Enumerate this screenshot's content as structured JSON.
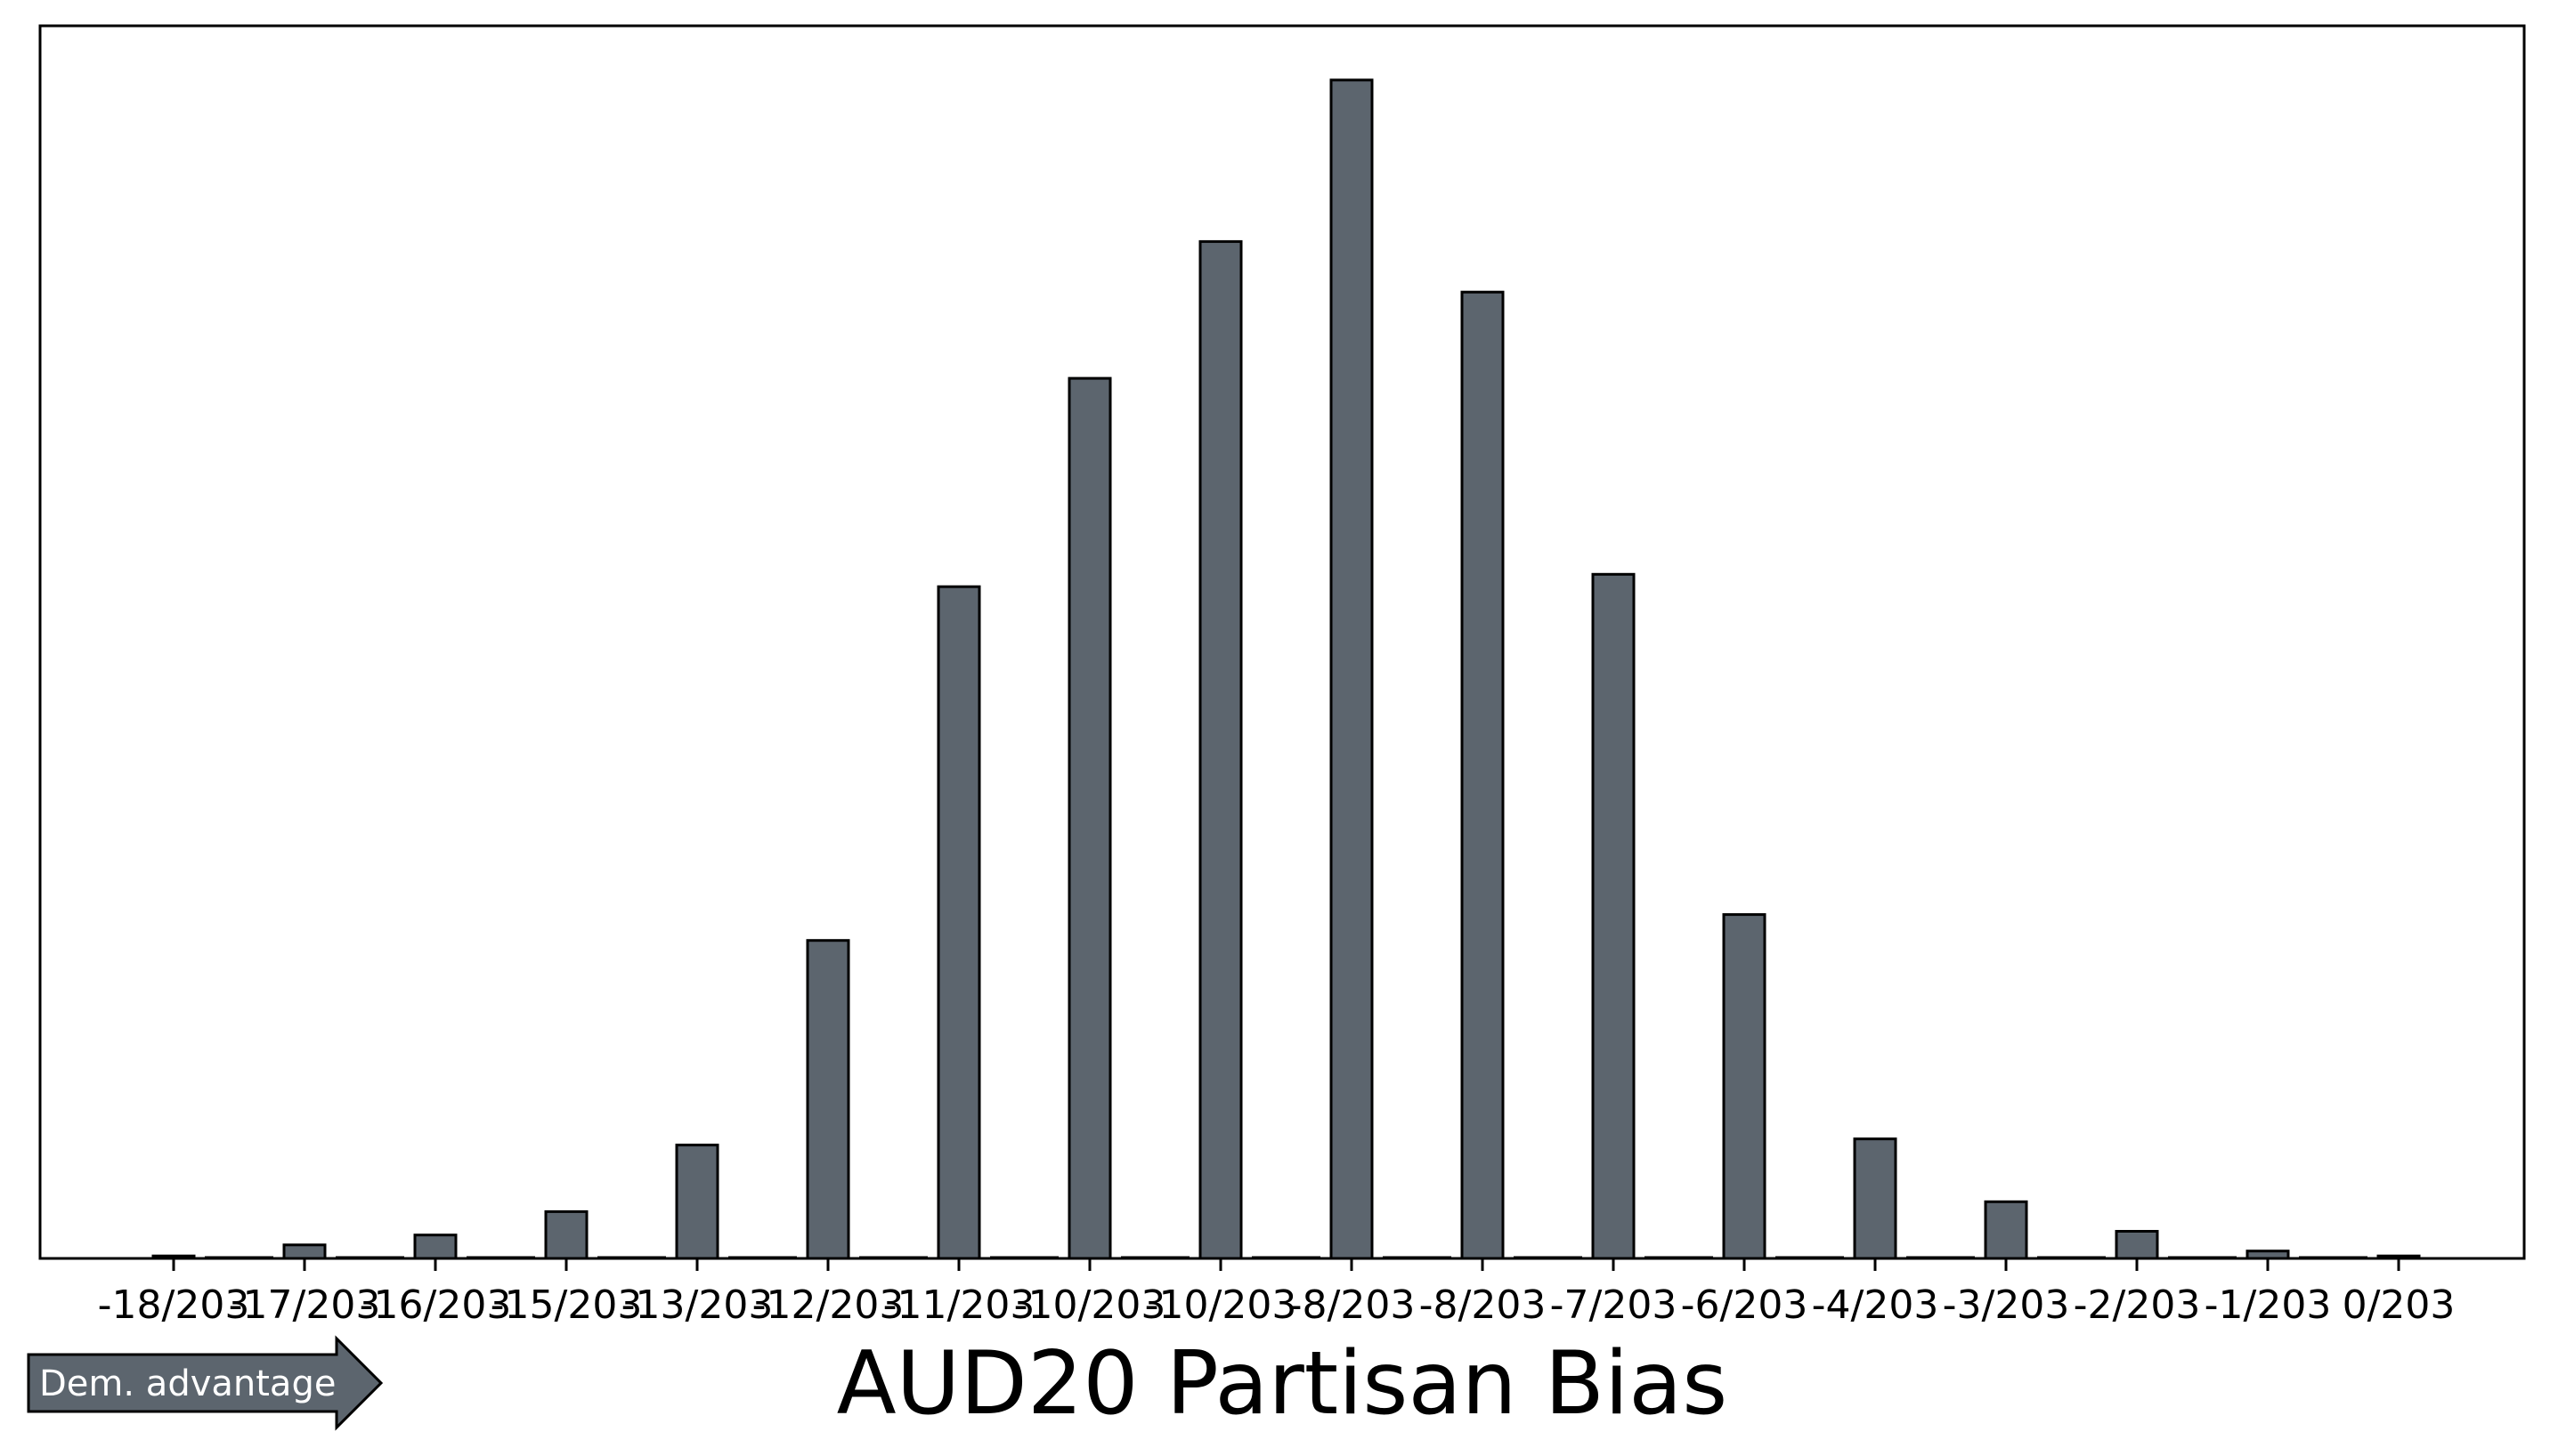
{
  "chart_data": {
    "type": "bar",
    "title": "AUD20 Partisan Bias",
    "xlabel": "",
    "ylabel": "",
    "y_axis_visible": false,
    "grid": false,
    "legend": "none",
    "bar_color": "#5c656e",
    "edge_color": "#000000",
    "categories": [
      "-18/203",
      "-17/203",
      "-16/203",
      "-15/203",
      "-13/203",
      "-12/203",
      "-11/203",
      "-10/203",
      "-10/203",
      "-8/203",
      "-8/203",
      "-7/203",
      "-6/203",
      "-4/203",
      "-3/203",
      "-2/203",
      "-1/203",
      "0/203"
    ],
    "values": [
      2,
      11,
      19,
      38,
      92,
      258,
      545,
      714,
      825,
      956,
      784,
      555,
      279,
      97,
      46,
      22,
      6,
      2
    ],
    "ylim": [
      0,
      1000
    ]
  },
  "annotation": {
    "label": "Dem. advantage",
    "color": "#5c656e",
    "text_color": "#ffffff"
  }
}
